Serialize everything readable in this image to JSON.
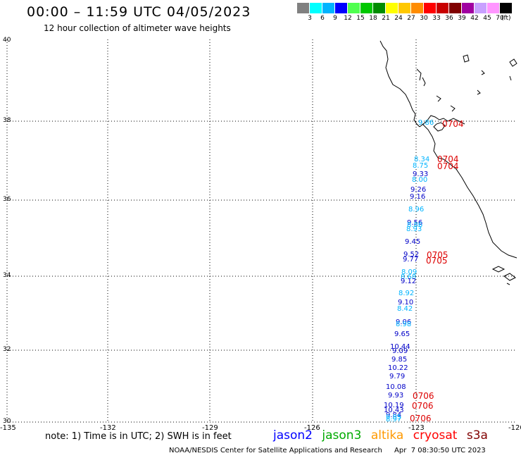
{
  "header": {
    "title": "00:00 – 11:59 UTC 04/05/2023",
    "subtitle": "12 hour collection of altimeter wave heights"
  },
  "color_scale": {
    "labels": [
      "3",
      "6",
      "9",
      "12",
      "15",
      "18",
      "21",
      "24",
      "27",
      "30",
      "33",
      "36",
      "39",
      "42",
      "45",
      "70"
    ],
    "unit": "(ft)",
    "colors": [
      "#808080",
      "#00ffff",
      "#00b4ff",
      "#0000ff",
      "#50ff50",
      "#00c800",
      "#008c00",
      "#ffff00",
      "#ffc800",
      "#ff8c00",
      "#ff0000",
      "#c80000",
      "#800000",
      "#a000a0",
      "#c8a0ff",
      "#ff96ff",
      "#000000"
    ]
  },
  "map": {
    "lat_labels": [
      "40",
      "38",
      "36",
      "34",
      "32",
      "30"
    ],
    "lon_labels": [
      "-135",
      "-132",
      "-129",
      "-126",
      "-123",
      "-120"
    ]
  },
  "observations": [
    {
      "text": "9.86",
      "color": "#00b4ff"
    },
    {
      "text": "8.34",
      "color": "#00b4ff"
    },
    {
      "text": "8.75",
      "color": "#00b4ff"
    },
    {
      "text": "9.33",
      "color": "#0000c8"
    },
    {
      "text": "8.00",
      "color": "#00b4ff"
    },
    {
      "text": "9.26",
      "color": "#0000c8"
    },
    {
      "text": "9.16",
      "color": "#0000c8"
    },
    {
      "text": "8.96",
      "color": "#00b4ff"
    },
    {
      "text": "9.56",
      "color": "#0000c8"
    },
    {
      "text": "8.86",
      "color": "#00b4ff"
    },
    {
      "text": "8.93",
      "color": "#00b4ff"
    },
    {
      "text": "9.45",
      "color": "#0000c8"
    },
    {
      "text": "9.52",
      "color": "#0000c8"
    },
    {
      "text": "9.77",
      "color": "#0000c8"
    },
    {
      "text": "8.09",
      "color": "#00b4ff"
    },
    {
      "text": "8.68",
      "color": "#00b4ff"
    },
    {
      "text": "9.12",
      "color": "#0000c8"
    },
    {
      "text": "8.92",
      "color": "#00b4ff"
    },
    {
      "text": "9.10",
      "color": "#0000c8"
    },
    {
      "text": "8.42",
      "color": "#00b4ff"
    },
    {
      "text": "9.06",
      "color": "#0000c8"
    },
    {
      "text": "8.98",
      "color": "#00b4ff"
    },
    {
      "text": "9.65",
      "color": "#0000c8"
    },
    {
      "text": "10.44",
      "color": "#0000c8"
    },
    {
      "text": "9.09",
      "color": "#0000c8"
    },
    {
      "text": "9.85",
      "color": "#0000c8"
    },
    {
      "text": "10.22",
      "color": "#0000c8"
    },
    {
      "text": "9.79",
      "color": "#0000c8"
    },
    {
      "text": "10.08",
      "color": "#0000c8"
    },
    {
      "text": "9.93",
      "color": "#0000c8"
    },
    {
      "text": "10.19",
      "color": "#0000c8"
    },
    {
      "text": "10.43",
      "color": "#0000c8"
    },
    {
      "text": "9.84",
      "color": "#0000c8"
    },
    {
      "text": "9.85",
      "color": "#00b4ff"
    },
    {
      "text": "8.97",
      "color": "#00b4ff"
    }
  ],
  "time_tags": [
    "0704",
    "0704",
    "0704",
    "0705",
    "0705",
    "0706",
    "0706",
    "0706"
  ],
  "footer": {
    "note": "note: 1) Time is in UTC; 2) SWH is in feet",
    "legend": [
      {
        "name": "jason2",
        "color": "#0000ff"
      },
      {
        "name": "jason3",
        "color": "#00aa00"
      },
      {
        "name": "altika",
        "color": "#ff9900"
      },
      {
        "name": "cryosat",
        "color": "#ff0000"
      },
      {
        "name": "s3a",
        "color": "#800000"
      }
    ],
    "credit": "NOAA/NESDIS Center for Satellite Applications and Research",
    "timestamp": "Apr  7 08:30:50 UTC 2023"
  }
}
